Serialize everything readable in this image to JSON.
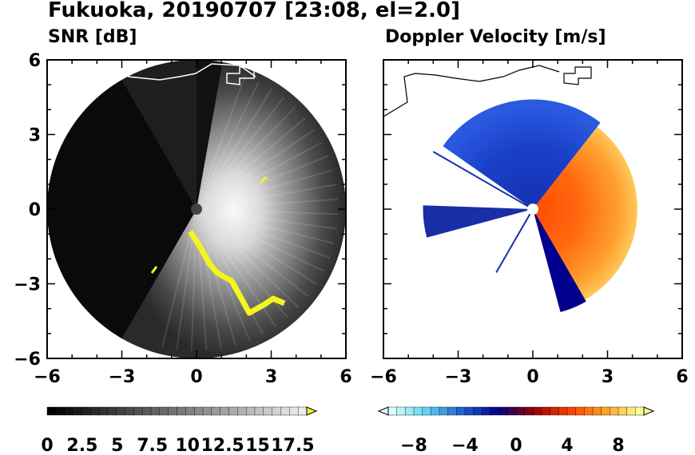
{
  "title": "Fukuoka, 20190707 [23:08, el=2.0]",
  "chart_data": [
    {
      "type": "heatmap",
      "title": "SNR [dB]",
      "projection": "polar radar PPI",
      "xlim": [
        -6,
        6
      ],
      "ylim": [
        -6,
        6
      ],
      "xticks": [
        "−6",
        "−3",
        "0",
        "3",
        "6"
      ],
      "yticks": [
        "6",
        "3",
        "0",
        "−3",
        "−6"
      ],
      "range_km": 6,
      "colorbar": {
        "ticks": [
          "0",
          "2.5",
          "5",
          "7.5",
          "10",
          "12.5",
          "15",
          "17.5"
        ],
        "min": 0,
        "max": 18.5,
        "extend": "max",
        "colors": [
          "#000000",
          "#ffffff"
        ],
        "over_color": "#f5f51e"
      },
      "high_snr_color": "#f5f51e"
    },
    {
      "type": "heatmap",
      "title": "Doppler Velocity [m/s]",
      "projection": "polar radar PPI",
      "xlim": [
        -6,
        6
      ],
      "ylim": [
        -6,
        6
      ],
      "xticks": [
        "−6",
        "−3",
        "0",
        "3",
        "6"
      ],
      "yticks": [],
      "colorbar": {
        "ticks": [
          "−8",
          "−4",
          "0",
          "4",
          "8"
        ],
        "min": -10,
        "max": 10,
        "extend": "both",
        "colors": [
          "#d9ffff",
          "#5ad2f0",
          "#1e5ad2",
          "#00008c",
          "#960000",
          "#ff3c00",
          "#ffa01e",
          "#ffff96"
        ]
      }
    }
  ]
}
